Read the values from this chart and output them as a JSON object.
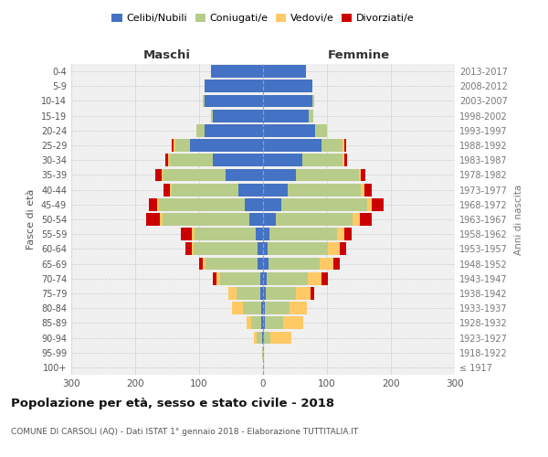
{
  "age_groups": [
    "100+",
    "95-99",
    "90-94",
    "85-89",
    "80-84",
    "75-79",
    "70-74",
    "65-69",
    "60-64",
    "55-59",
    "50-54",
    "45-49",
    "40-44",
    "35-39",
    "30-34",
    "25-29",
    "20-24",
    "15-19",
    "10-14",
    "5-9",
    "0-4"
  ],
  "birth_years": [
    "≤ 1917",
    "1918-1922",
    "1923-1927",
    "1928-1932",
    "1933-1937",
    "1938-1942",
    "1943-1947",
    "1948-1952",
    "1953-1957",
    "1958-1962",
    "1963-1967",
    "1968-1972",
    "1973-1977",
    "1978-1982",
    "1983-1987",
    "1988-1992",
    "1993-1997",
    "1998-2002",
    "2003-2007",
    "2008-2012",
    "2013-2017"
  ],
  "maschi": {
    "celibi": [
      0,
      0,
      2,
      3,
      3,
      4,
      5,
      8,
      8,
      12,
      22,
      28,
      38,
      58,
      78,
      115,
      92,
      78,
      92,
      92,
      82
    ],
    "coniugati": [
      0,
      2,
      8,
      15,
      28,
      38,
      62,
      82,
      100,
      95,
      135,
      135,
      105,
      98,
      68,
      22,
      12,
      3,
      3,
      0,
      0
    ],
    "vedovi": [
      0,
      0,
      5,
      8,
      18,
      12,
      6,
      4,
      4,
      4,
      4,
      3,
      3,
      3,
      3,
      3,
      0,
      0,
      0,
      0,
      0
    ],
    "divorziati": [
      0,
      0,
      0,
      0,
      0,
      0,
      6,
      6,
      10,
      18,
      22,
      12,
      10,
      10,
      4,
      3,
      0,
      0,
      0,
      0,
      0
    ]
  },
  "femmine": {
    "nubili": [
      0,
      0,
      2,
      3,
      3,
      4,
      5,
      8,
      7,
      10,
      20,
      28,
      38,
      52,
      62,
      92,
      82,
      72,
      77,
      77,
      67
    ],
    "coniugate": [
      0,
      0,
      10,
      28,
      38,
      48,
      65,
      80,
      95,
      105,
      120,
      135,
      115,
      98,
      62,
      32,
      18,
      7,
      3,
      0,
      0
    ],
    "vedove": [
      0,
      2,
      32,
      32,
      28,
      22,
      22,
      22,
      18,
      12,
      12,
      7,
      5,
      3,
      3,
      3,
      0,
      0,
      0,
      0,
      0
    ],
    "divorziate": [
      0,
      0,
      0,
      0,
      0,
      6,
      10,
      10,
      10,
      12,
      18,
      18,
      12,
      7,
      4,
      3,
      0,
      0,
      0,
      0,
      0
    ]
  },
  "colors": {
    "celibi": "#4472c4",
    "coniugati": "#b8cc8a",
    "vedovi": "#ffc966",
    "divorziati": "#cc0000"
  },
  "title": "Popolazione per età, sesso e stato civile - 2018",
  "subtitle": "COMUNE DI CARSOLI (AQ) - Dati ISTAT 1° gennaio 2018 - Elaborazione TUTTITALIA.IT",
  "xlabel_left": "Maschi",
  "xlabel_right": "Femmine",
  "ylabel": "Fasce di età",
  "ylabel_right": "Anni di nascita",
  "xlim": 300,
  "legend_labels": [
    "Celibi/Nubili",
    "Coniugati/e",
    "Vedovi/e",
    "Divorziati/e"
  ],
  "bg_color": "#f0f0f0",
  "grid_color": "#cccccc"
}
